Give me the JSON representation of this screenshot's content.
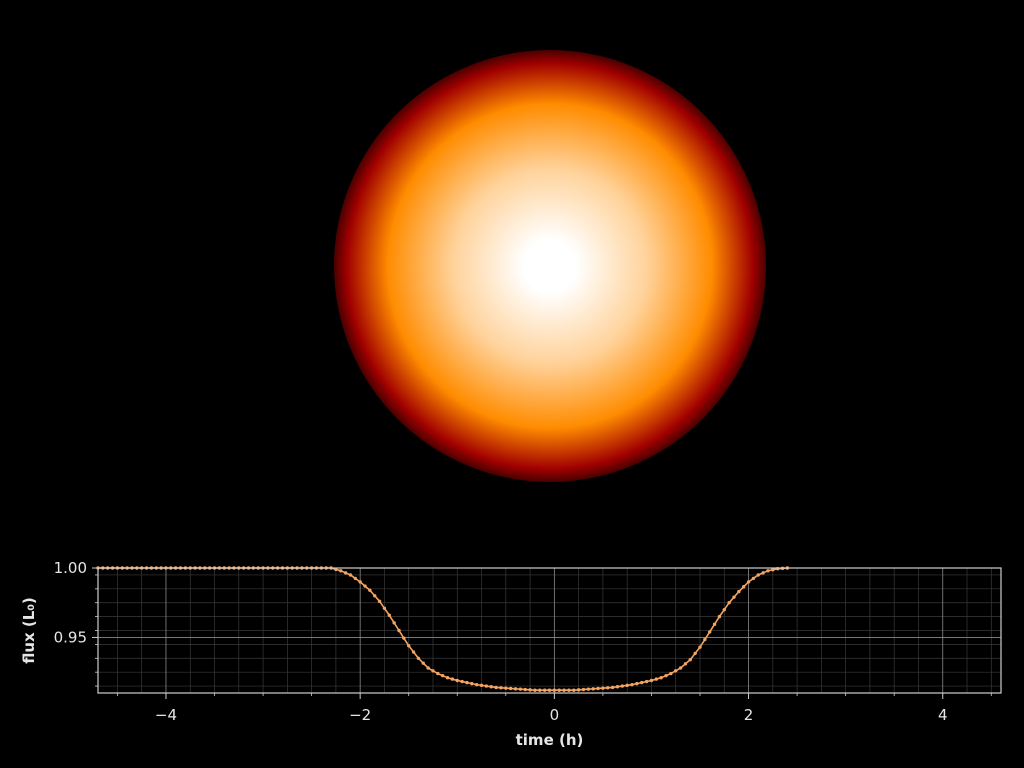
{
  "chart_data": {
    "type": "line",
    "xlabel": "time (h)",
    "ylabel": "flux (L₀)",
    "xlim": [
      -4.7,
      4.6
    ],
    "ylim": [
      0.91,
      1.0
    ],
    "xticks": [
      -4,
      -2,
      0,
      2,
      4
    ],
    "xtick_labels": [
      "−4",
      "−2",
      "0",
      "2",
      "4"
    ],
    "yticks": [
      0.95,
      1.0
    ],
    "ytick_labels": [
      "0.95",
      "1.00"
    ],
    "grid": true,
    "minor_grid": true,
    "series": [
      {
        "color": "#f4a460",
        "marker": "dot",
        "transit_start": -2.3,
        "transit_end": 2.4,
        "points": [
          [
            -4.7,
            1.0
          ],
          [
            -3.0,
            1.0
          ],
          [
            -2.3,
            1.0
          ],
          [
            -2.2,
            0.998
          ],
          [
            -2.1,
            0.995
          ],
          [
            -2.0,
            0.99
          ],
          [
            -1.9,
            0.984
          ],
          [
            -1.8,
            0.976
          ],
          [
            -1.7,
            0.966
          ],
          [
            -1.6,
            0.955
          ],
          [
            -1.5,
            0.944
          ],
          [
            -1.4,
            0.935
          ],
          [
            -1.3,
            0.928
          ],
          [
            -1.2,
            0.924
          ],
          [
            -1.1,
            0.921
          ],
          [
            -1.0,
            0.919
          ],
          [
            -0.8,
            0.916
          ],
          [
            -0.6,
            0.914
          ],
          [
            -0.4,
            0.913
          ],
          [
            -0.2,
            0.912
          ],
          [
            0.0,
            0.912
          ],
          [
            0.2,
            0.912
          ],
          [
            0.4,
            0.913
          ],
          [
            0.6,
            0.914
          ],
          [
            0.8,
            0.916
          ],
          [
            1.0,
            0.919
          ],
          [
            1.1,
            0.921
          ],
          [
            1.2,
            0.924
          ],
          [
            1.3,
            0.928
          ],
          [
            1.4,
            0.934
          ],
          [
            1.5,
            0.943
          ],
          [
            1.6,
            0.954
          ],
          [
            1.7,
            0.965
          ],
          [
            1.8,
            0.975
          ],
          [
            1.9,
            0.983
          ],
          [
            2.0,
            0.99
          ],
          [
            2.1,
            0.995
          ],
          [
            2.2,
            0.998
          ],
          [
            2.3,
            0.9995
          ],
          [
            2.4,
            1.0
          ]
        ]
      }
    ]
  },
  "star": {
    "colors": {
      "core": "#ffffff",
      "mid": "#ffd29a",
      "outer": "#ff8c00",
      "limb": "#a00000",
      "edge": "#4a0000"
    }
  },
  "colors": {
    "background": "#000000",
    "axes": "#cfcfcf",
    "grid_major": "#8a8a8a",
    "grid_minor": "#3a3a3a",
    "text": "#e6e6e6"
  }
}
